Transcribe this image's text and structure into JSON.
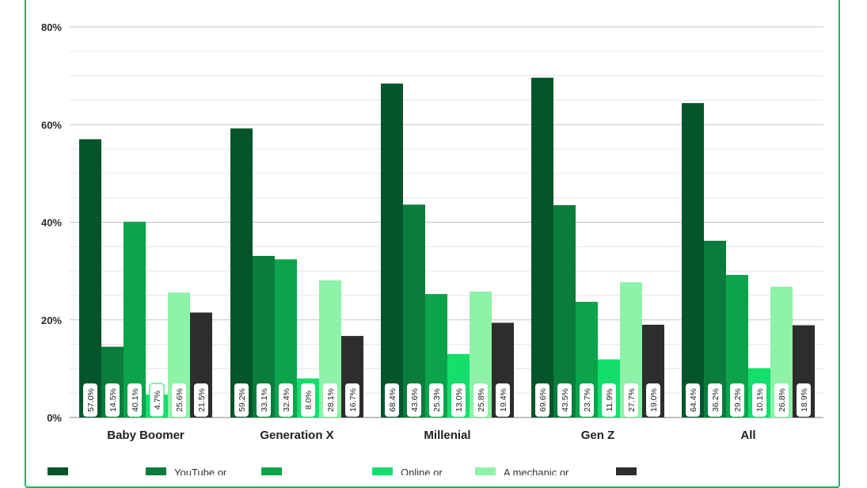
{
  "chart_data": {
    "type": "bar",
    "title": "",
    "xlabel": "",
    "ylabel": "",
    "ylim": [
      0,
      80
    ],
    "yticks": [
      "0%",
      "20%",
      "40%",
      "60%",
      "80%"
    ],
    "grid": true,
    "legend_position": "bottom",
    "categories": [
      "Baby Boomer",
      "Generation X",
      "Millenial",
      "Gen Z",
      "All"
    ],
    "series": [
      {
        "name": "",
        "color": "#04552b",
        "values": [
          57.0,
          59.2,
          68.4,
          69.6,
          64.4
        ]
      },
      {
        "name": "YouTube or",
        "color": "#0a7d3c",
        "values": [
          14.5,
          33.1,
          43.6,
          43.5,
          36.2
        ]
      },
      {
        "name": "",
        "color": "#0ca44b",
        "values": [
          40.1,
          32.4,
          25.3,
          23.7,
          29.2
        ]
      },
      {
        "name": "Online or",
        "color": "#14de6c",
        "values": [
          4.7,
          8.0,
          13.0,
          11.9,
          10.1
        ]
      },
      {
        "name": "A mechanic or",
        "color": "#8ef2a8",
        "values": [
          25.6,
          28.1,
          25.8,
          27.7,
          26.8
        ]
      },
      {
        "name": "",
        "color": "#2d2d2d",
        "values": [
          21.5,
          16.7,
          19.4,
          19.0,
          18.9
        ]
      }
    ],
    "data_labels": [
      [
        "57.0%",
        "14.5%",
        "40.1%",
        "4.7%",
        "25.6%",
        "21.5%"
      ],
      [
        "59.2%",
        "33.1%",
        "32.4%",
        "8.0%",
        "28.1%",
        "16.7%"
      ],
      [
        "68.4%",
        "43.6%",
        "25.3%",
        "13.0%",
        "25.8%",
        "19.4%"
      ],
      [
        "69.6%",
        "43.5%",
        "23.7%",
        "11.9%",
        "27.7%",
        "19.0%"
      ],
      [
        "64.4%",
        "36.2%",
        "29.2%",
        "10.1%",
        "26.8%",
        "18.9%"
      ]
    ]
  }
}
